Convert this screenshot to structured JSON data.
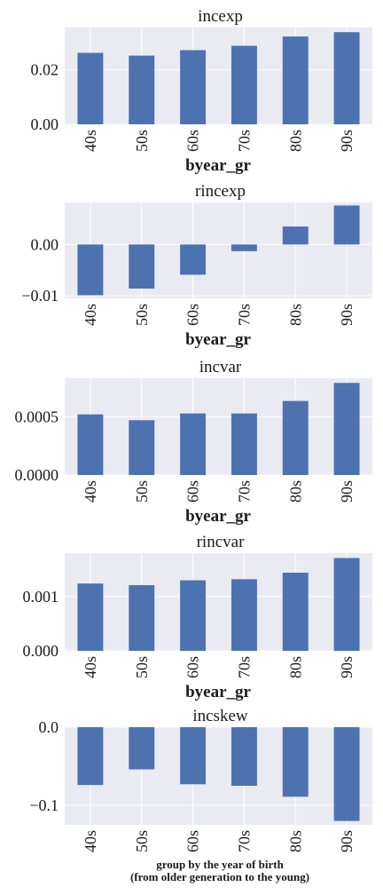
{
  "colors": {
    "bar": "#4c72b0",
    "plot_bg": "#eaeaf2",
    "grid": "#ffffff",
    "text": "#1a1a1a"
  },
  "chart_data": [
    {
      "type": "bar",
      "title": "incexp",
      "xlabel": "byear_gr",
      "categories": [
        "40s",
        "50s",
        "60s",
        "70s",
        "80s",
        "90s"
      ],
      "values": [
        0.0262,
        0.0252,
        0.0272,
        0.0288,
        0.0322,
        0.0338
      ],
      "ylim": [
        0,
        0.0355
      ],
      "yticks": [
        0.0,
        0.02
      ],
      "ytick_labels": [
        "0.00",
        "0.02"
      ],
      "grid": true
    },
    {
      "type": "bar",
      "title": "rincexp",
      "xlabel": "byear_gr",
      "categories": [
        "40s",
        "50s",
        "60s",
        "70s",
        "80s",
        "90s"
      ],
      "values": [
        -0.0099,
        -0.0086,
        -0.0059,
        -0.0013,
        0.0035,
        0.0076
      ],
      "ylim": [
        -0.0105,
        0.0082
      ],
      "yticks": [
        0.0,
        -0.01
      ],
      "ytick_labels": [
        "0.00",
        "−0.01"
      ],
      "grid": true
    },
    {
      "type": "bar",
      "title": "incvar",
      "xlabel": "byear_gr",
      "categories": [
        "40s",
        "50s",
        "60s",
        "70s",
        "80s",
        "90s"
      ],
      "values": [
        0.00052,
        0.00047,
        0.000528,
        0.000528,
        0.000635,
        0.00079
      ],
      "ylim": [
        0,
        0.00083
      ],
      "yticks": [
        0.0,
        0.0005
      ],
      "ytick_labels": [
        "0.0000",
        "0.0005"
      ],
      "grid": true
    },
    {
      "type": "bar",
      "title": "rincvar",
      "xlabel": "byear_gr",
      "categories": [
        "40s",
        "50s",
        "60s",
        "70s",
        "80s",
        "90s"
      ],
      "values": [
        0.00124,
        0.00121,
        0.0013,
        0.00132,
        0.00144,
        0.00171
      ],
      "ylim": [
        0,
        0.0018
      ],
      "yticks": [
        0.0,
        0.001
      ],
      "ytick_labels": [
        "0.000",
        "0.001"
      ],
      "grid": true
    },
    {
      "type": "bar",
      "title": "incskew",
      "xlabel": "group by the year of birth\n(from older generation to the young)",
      "categories": [
        "40s",
        "50s",
        "60s",
        "70s",
        "80s",
        "90s"
      ],
      "values": [
        -0.074,
        -0.054,
        -0.073,
        -0.075,
        -0.089,
        -0.12
      ],
      "ylim": [
        -0.125,
        0
      ],
      "yticks": [
        0.0,
        -0.1
      ],
      "ytick_labels": [
        "0.0",
        "−0.1"
      ],
      "grid": true
    }
  ]
}
